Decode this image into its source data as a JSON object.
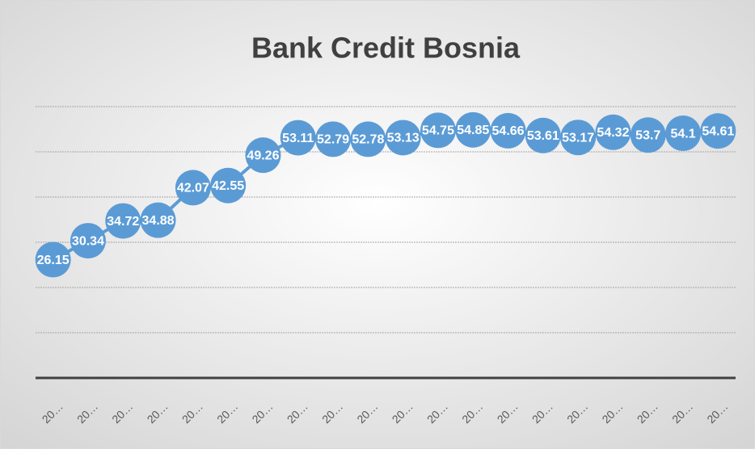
{
  "chart_data": {
    "type": "line",
    "title": "Bank Credit Bosnia",
    "categories": [
      "20…",
      "20…",
      "20…",
      "20…",
      "20…",
      "20…",
      "20…",
      "20…",
      "20…",
      "20…",
      "20…",
      "20…",
      "20…",
      "20…",
      "20…",
      "20…",
      "20…",
      "20…",
      "20…",
      "20…"
    ],
    "values": [
      26.15,
      30.34,
      34.72,
      34.88,
      42.07,
      42.55,
      49.26,
      53.11,
      52.79,
      52.78,
      53.13,
      54.75,
      54.85,
      54.66,
      53.61,
      53.17,
      54.32,
      53.7,
      54.1,
      54.61
    ],
    "color": "#5b9bd5",
    "ylim": [
      0,
      60
    ],
    "yticks": [
      0,
      10,
      20,
      30,
      40,
      50,
      60
    ],
    "grid": true
  }
}
